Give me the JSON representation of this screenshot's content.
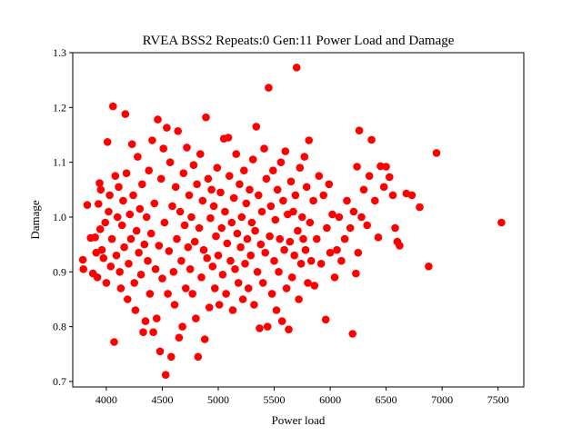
{
  "chart_data": {
    "type": "scatter",
    "title": "RVEA BSS2 Repeats:0 Gen:11 Power Load and Damage",
    "xlabel": "Power load",
    "ylabel": "Damage",
    "xlim": [
      3700,
      7730
    ],
    "ylim": [
      0.69,
      1.3
    ],
    "xticks": [
      4000,
      4500,
      5000,
      5500,
      6000,
      6500,
      7000,
      7500
    ],
    "yticks": [
      0.7,
      0.8,
      0.9,
      1.0,
      1.1,
      1.2,
      1.3
    ],
    "grid": false,
    "marker_color": "#ff0000",
    "points": [
      [
        3790,
        0.922
      ],
      [
        3795,
        0.905
      ],
      [
        3830,
        1.022
      ],
      [
        3860,
        0.962
      ],
      [
        3880,
        0.897
      ],
      [
        3900,
        0.963
      ],
      [
        3910,
        0.935
      ],
      [
        3920,
        0.89
      ],
      [
        3930,
        1.024
      ],
      [
        3940,
        1.062
      ],
      [
        3945,
        0.978
      ],
      [
        3950,
        1.05
      ],
      [
        3960,
        0.94
      ],
      [
        3975,
        0.925
      ],
      [
        3990,
        0.99
      ],
      [
        4000,
        0.88
      ],
      [
        4010,
        1.137
      ],
      [
        4020,
        1.01
      ],
      [
        4030,
        1.04
      ],
      [
        4040,
        0.91
      ],
      [
        4050,
        0.96
      ],
      [
        4060,
        1.202
      ],
      [
        4070,
        0.772
      ],
      [
        4080,
        1.075
      ],
      [
        4090,
        0.93
      ],
      [
        4100,
        1.0
      ],
      [
        4110,
        1.055
      ],
      [
        4120,
        0.9
      ],
      [
        4130,
        0.87
      ],
      [
        4140,
        0.985
      ],
      [
        4150,
        1.03
      ],
      [
        4160,
        0.945
      ],
      [
        4170,
        1.188
      ],
      [
        4180,
        1.08
      ],
      [
        4190,
        0.85
      ],
      [
        4200,
        0.915
      ],
      [
        4210,
        1.005
      ],
      [
        4220,
        0.96
      ],
      [
        4230,
        1.133
      ],
      [
        4240,
        1.04
      ],
      [
        4250,
        0.88
      ],
      [
        4260,
        0.83
      ],
      [
        4270,
        0.975
      ],
      [
        4280,
        1.11
      ],
      [
        4290,
        0.935
      ],
      [
        4300,
        1.015
      ],
      [
        4310,
        0.895
      ],
      [
        4320,
        1.06
      ],
      [
        4330,
        0.79
      ],
      [
        4340,
        0.95
      ],
      [
        4350,
        0.81
      ],
      [
        4360,
        1.0
      ],
      [
        4370,
        0.92
      ],
      [
        4380,
        1.085
      ],
      [
        4390,
        0.86
      ],
      [
        4400,
        0.97
      ],
      [
        4410,
        1.14
      ],
      [
        4420,
        0.79
      ],
      [
        4430,
        1.025
      ],
      [
        4440,
        0.905
      ],
      [
        4450,
        0.815
      ],
      [
        4460,
        1.178
      ],
      [
        4470,
        0.948
      ],
      [
        4480,
        0.755
      ],
      [
        4490,
        1.07
      ],
      [
        4500,
        0.888
      ],
      [
        4510,
        1.125
      ],
      [
        4520,
        0.99
      ],
      [
        4530,
        0.712
      ],
      [
        4540,
        1.163
      ],
      [
        4550,
        0.86
      ],
      [
        4560,
        0.938
      ],
      [
        4570,
        1.1
      ],
      [
        4580,
        0.745
      ],
      [
        4590,
        1.02
      ],
      [
        4600,
        0.9
      ],
      [
        4610,
        0.84
      ],
      [
        4620,
        1.055
      ],
      [
        4630,
        0.96
      ],
      [
        4640,
        1.157
      ],
      [
        4650,
        0.78
      ],
      [
        4660,
        1.01
      ],
      [
        4670,
        0.92
      ],
      [
        4680,
        0.8
      ],
      [
        4690,
        1.08
      ],
      [
        4700,
        0.985
      ],
      [
        4710,
        0.87
      ],
      [
        4720,
        1.127
      ],
      [
        4730,
        0.945
      ],
      [
        4740,
        1.04
      ],
      [
        4750,
        0.905
      ],
      [
        4760,
        1.0
      ],
      [
        4770,
        0.86
      ],
      [
        4780,
        1.095
      ],
      [
        4790,
        0.955
      ],
      [
        4800,
        0.815
      ],
      [
        4810,
        1.06
      ],
      [
        4820,
        0.745
      ],
      [
        4830,
        0.98
      ],
      [
        4840,
        1.115
      ],
      [
        4850,
        0.89
      ],
      [
        4860,
        1.03
      ],
      [
        4870,
        0.94
      ],
      [
        4880,
        0.777
      ],
      [
        4890,
        1.182
      ],
      [
        4900,
        0.925
      ],
      [
        4910,
        1.07
      ],
      [
        4920,
        0.835
      ],
      [
        4930,
        0.998
      ],
      [
        4940,
        1.05
      ],
      [
        4950,
        0.91
      ],
      [
        4960,
        1.02
      ],
      [
        4970,
        0.87
      ],
      [
        4980,
        0.965
      ],
      [
        4990,
        1.09
      ],
      [
        5000,
        0.93
      ],
      [
        5010,
        0.84
      ],
      [
        5020,
        1.045
      ],
      [
        5030,
        0.98
      ],
      [
        5040,
        0.895
      ],
      [
        5050,
        1.143
      ],
      [
        5060,
        1.01
      ],
      [
        5070,
        0.86
      ],
      [
        5080,
        0.952
      ],
      [
        5090,
        1.145
      ],
      [
        5100,
        1.075
      ],
      [
        5110,
        0.92
      ],
      [
        5120,
        0.99
      ],
      [
        5130,
        0.83
      ],
      [
        5140,
        1.035
      ],
      [
        5150,
        0.905
      ],
      [
        5160,
        1.115
      ],
      [
        5170,
        0.97
      ],
      [
        5180,
        0.88
      ],
      [
        5190,
        1.06
      ],
      [
        5200,
        0.945
      ],
      [
        5210,
        1.0
      ],
      [
        5220,
        0.85
      ],
      [
        5230,
        1.085
      ],
      [
        5240,
        0.915
      ],
      [
        5250,
        1.025
      ],
      [
        5260,
        0.96
      ],
      [
        5270,
        0.87
      ],
      [
        5280,
        1.05
      ],
      [
        5290,
        0.93
      ],
      [
        5300,
        0.99
      ],
      [
        5310,
        1.105
      ],
      [
        5320,
        0.84
      ],
      [
        5330,
        0.975
      ],
      [
        5340,
        1.165
      ],
      [
        5350,
        0.9
      ],
      [
        5360,
        1.04
      ],
      [
        5370,
        0.797
      ],
      [
        5380,
        0.95
      ],
      [
        5390,
        1.01
      ],
      [
        5400,
        0.88
      ],
      [
        5410,
        1.125
      ],
      [
        5420,
        0.935
      ],
      [
        5430,
        1.07
      ],
      [
        5440,
        0.8
      ],
      [
        5450,
        1.236
      ],
      [
        5460,
        0.965
      ],
      [
        5470,
        1.02
      ],
      [
        5480,
        0.86
      ],
      [
        5490,
        1.085
      ],
      [
        5500,
        0.92
      ],
      [
        5510,
        0.995
      ],
      [
        5520,
        0.83
      ],
      [
        5530,
        1.05
      ],
      [
        5540,
        0.9
      ],
      [
        5550,
        0.96
      ],
      [
        5560,
        1.1
      ],
      [
        5570,
        0.81
      ],
      [
        5580,
        1.03
      ],
      [
        5590,
        0.94
      ],
      [
        5600,
        1.12
      ],
      [
        5610,
        0.87
      ],
      [
        5620,
        1.005
      ],
      [
        5630,
        0.795
      ],
      [
        5640,
        0.955
      ],
      [
        5650,
        1.065
      ],
      [
        5660,
        0.89
      ],
      [
        5670,
        1.01
      ],
      [
        5680,
        0.93
      ],
      [
        5690,
        1.04
      ],
      [
        5700,
        1.273
      ],
      [
        5710,
        0.975
      ],
      [
        5720,
        0.85
      ],
      [
        5730,
        1.09
      ],
      [
        5740,
        0.915
      ],
      [
        5750,
        1.0
      ],
      [
        5760,
        0.96
      ],
      [
        5770,
        1.11
      ],
      [
        5780,
        0.94
      ],
      [
        5790,
        1.055
      ],
      [
        5800,
        0.88
      ],
      [
        5810,
        1.14
      ],
      [
        5820,
        0.99
      ],
      [
        5830,
        0.92
      ],
      [
        5850,
        1.03
      ],
      [
        5860,
        0.875
      ],
      [
        5880,
        0.96
      ],
      [
        5900,
        1.075
      ],
      [
        5920,
        0.915
      ],
      [
        5940,
        1.04
      ],
      [
        5960,
        0.813
      ],
      [
        5970,
        0.98
      ],
      [
        5990,
        1.06
      ],
      [
        6000,
        0.935
      ],
      [
        6020,
        1.005
      ],
      [
        6040,
        0.89
      ],
      [
        6060,
        0.94
      ],
      [
        6080,
        1.0
      ],
      [
        6100,
        0.92
      ],
      [
        6130,
        0.96
      ],
      [
        6150,
        1.03
      ],
      [
        6180,
        0.98
      ],
      [
        6200,
        0.787
      ],
      [
        6210,
        1.01
      ],
      [
        6230,
        0.897
      ],
      [
        6240,
        1.092
      ],
      [
        6250,
        0.935
      ],
      [
        6260,
        1.158
      ],
      [
        6280,
        1.0
      ],
      [
        6300,
        1.05
      ],
      [
        6330,
        0.985
      ],
      [
        6350,
        1.075
      ],
      [
        6370,
        1.141
      ],
      [
        6400,
        1.03
      ],
      [
        6430,
        0.963
      ],
      [
        6450,
        1.093
      ],
      [
        6480,
        1.055
      ],
      [
        6500,
        1.092
      ],
      [
        6530,
        1.073
      ],
      [
        6560,
        1.04
      ],
      [
        6580,
        0.98
      ],
      [
        6600,
        0.955
      ],
      [
        6620,
        0.948
      ],
      [
        6680,
        1.043
      ],
      [
        6730,
        1.04
      ],
      [
        6800,
        1.018
      ],
      [
        6880,
        0.91
      ],
      [
        6950,
        1.117
      ],
      [
        7530,
        0.99
      ]
    ]
  }
}
